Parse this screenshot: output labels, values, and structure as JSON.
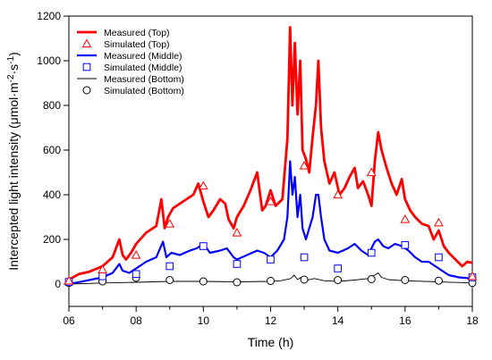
{
  "chart_data": {
    "type": "line",
    "xlabel": "Time (h)",
    "ylabel": {
      "main": "Intercepted light intensity (μmol·m",
      "sup1": "-2",
      "mid": "·s",
      "sup2": "-1",
      "end": ")"
    },
    "xlim": [
      6,
      18
    ],
    "ylim": [
      -100,
      1200
    ],
    "x_ticks": [
      6,
      8,
      10,
      12,
      14,
      16,
      18
    ],
    "x_tick_labels": [
      "06",
      "08",
      "10",
      "12",
      "14",
      "16",
      "18"
    ],
    "x_minor_ticks": [
      7,
      9,
      11,
      13,
      15,
      17
    ],
    "y_ticks": [
      0,
      200,
      400,
      600,
      800,
      1000,
      1200
    ],
    "y_tick_labels": [
      "0",
      "200",
      "400",
      "600",
      "800",
      "1000",
      "1200"
    ],
    "grid": false,
    "legend_position": "top-left",
    "series": [
      {
        "name": "Measured (Top)",
        "style": "line",
        "color": "#ff0000",
        "x": [
          6.0,
          6.3,
          6.6,
          7.0,
          7.3,
          7.5,
          7.6,
          7.7,
          7.85,
          8.0,
          8.3,
          8.6,
          8.75,
          8.85,
          8.95,
          9.1,
          9.3,
          9.5,
          9.7,
          9.85,
          10.0,
          10.15,
          10.3,
          10.5,
          10.65,
          10.75,
          10.9,
          11.0,
          11.2,
          11.4,
          11.6,
          11.75,
          11.85,
          12.0,
          12.15,
          12.35,
          12.5,
          12.58,
          12.65,
          12.72,
          12.8,
          12.88,
          12.95,
          13.05,
          13.15,
          13.25,
          13.35,
          13.42,
          13.5,
          13.6,
          13.75,
          13.9,
          14.05,
          14.2,
          14.35,
          14.5,
          14.6,
          14.75,
          14.9,
          15.0,
          15.1,
          15.2,
          15.3,
          15.45,
          15.6,
          15.75,
          15.9,
          16.0,
          16.15,
          16.3,
          16.5,
          16.7,
          16.85,
          17.0,
          17.15,
          17.3,
          17.5,
          17.7,
          17.85,
          18.0
        ],
        "values": [
          20,
          45,
          55,
          80,
          120,
          200,
          130,
          110,
          140,
          180,
          230,
          260,
          380,
          250,
          300,
          340,
          360,
          380,
          400,
          450,
          370,
          300,
          330,
          380,
          360,
          290,
          250,
          300,
          350,
          420,
          500,
          330,
          350,
          420,
          350,
          380,
          650,
          1150,
          800,
          1080,
          760,
          1000,
          600,
          560,
          500,
          660,
          800,
          1000,
          700,
          550,
          450,
          500,
          400,
          430,
          480,
          520,
          430,
          460,
          400,
          350,
          550,
          680,
          600,
          520,
          450,
          400,
          470,
          380,
          330,
          300,
          270,
          260,
          200,
          240,
          170,
          140,
          110,
          80,
          100,
          95
        ]
      },
      {
        "name": "Simulated (Top)",
        "style": "marker",
        "marker": "triangle",
        "color": "#ff0000",
        "x": [
          6.0,
          7.0,
          8.0,
          9.0,
          10.0,
          11.0,
          12.0,
          13.0,
          14.0,
          15.0,
          16.0,
          17.0,
          18.0
        ],
        "values": [
          15,
          65,
          130,
          270,
          440,
          230,
          370,
          530,
          400,
          500,
          290,
          275,
          35
        ]
      },
      {
        "name": "Measured (Middle)",
        "style": "line",
        "color": "#0000ff",
        "x": [
          6.0,
          6.5,
          7.0,
          7.3,
          7.5,
          7.6,
          7.8,
          8.0,
          8.3,
          8.6,
          8.8,
          8.9,
          9.05,
          9.3,
          9.6,
          9.8,
          10.0,
          10.2,
          10.5,
          10.7,
          10.9,
          11.0,
          11.3,
          11.6,
          11.8,
          12.0,
          12.2,
          12.4,
          12.5,
          12.58,
          12.65,
          12.72,
          12.8,
          12.88,
          12.95,
          13.05,
          13.15,
          13.25,
          13.35,
          13.42,
          13.5,
          13.6,
          13.75,
          14.0,
          14.3,
          14.5,
          14.7,
          14.9,
          15.1,
          15.2,
          15.35,
          15.5,
          15.7,
          15.9,
          16.1,
          16.3,
          16.5,
          16.7,
          16.9,
          17.1,
          17.3,
          17.6,
          18.0
        ],
        "values": [
          0,
          15,
          30,
          50,
          90,
          60,
          50,
          70,
          100,
          120,
          190,
          120,
          140,
          130,
          150,
          160,
          180,
          140,
          150,
          160,
          120,
          110,
          130,
          150,
          140,
          120,
          150,
          200,
          300,
          550,
          400,
          480,
          300,
          400,
          250,
          200,
          250,
          300,
          400,
          400,
          300,
          200,
          150,
          140,
          160,
          180,
          150,
          130,
          190,
          200,
          170,
          160,
          180,
          170,
          150,
          120,
          100,
          100,
          80,
          60,
          40,
          30,
          25
        ]
      },
      {
        "name": "Simulated (Middle)",
        "style": "marker",
        "marker": "square",
        "color": "#0000ff",
        "x": [
          6.0,
          7.0,
          8.0,
          9.0,
          10.0,
          11.0,
          12.0,
          13.0,
          14.0,
          15.0,
          16.0,
          17.0,
          18.0
        ],
        "values": [
          10,
          35,
          45,
          80,
          170,
          90,
          110,
          120,
          70,
          140,
          175,
          120,
          30
        ]
      },
      {
        "name": "Measured (Bottom)",
        "style": "line",
        "color": "#000000",
        "x": [
          6.0,
          7.0,
          8.0,
          9.0,
          10.0,
          11.0,
          12.0,
          12.3,
          12.6,
          12.7,
          12.8,
          12.9,
          13.0,
          13.3,
          13.6,
          14.0,
          14.5,
          14.9,
          15.0,
          15.1,
          15.2,
          15.3,
          15.5,
          16.0,
          17.0,
          18.0
        ],
        "values": [
          0,
          5,
          8,
          12,
          12,
          10,
          12,
          15,
          25,
          40,
          20,
          30,
          15,
          25,
          15,
          12,
          18,
          25,
          35,
          40,
          50,
          30,
          20,
          15,
          10,
          5
        ]
      },
      {
        "name": "Simulated (Bottom)",
        "style": "marker",
        "marker": "circle",
        "color": "#000000",
        "x": [
          6.0,
          7.0,
          8.0,
          9.0,
          10.0,
          11.0,
          12.0,
          13.0,
          14.0,
          15.0,
          16.0,
          17.0,
          18.0
        ],
        "values": [
          5,
          12,
          28,
          18,
          12,
          8,
          14,
          20,
          18,
          22,
          18,
          15,
          5
        ]
      }
    ]
  }
}
